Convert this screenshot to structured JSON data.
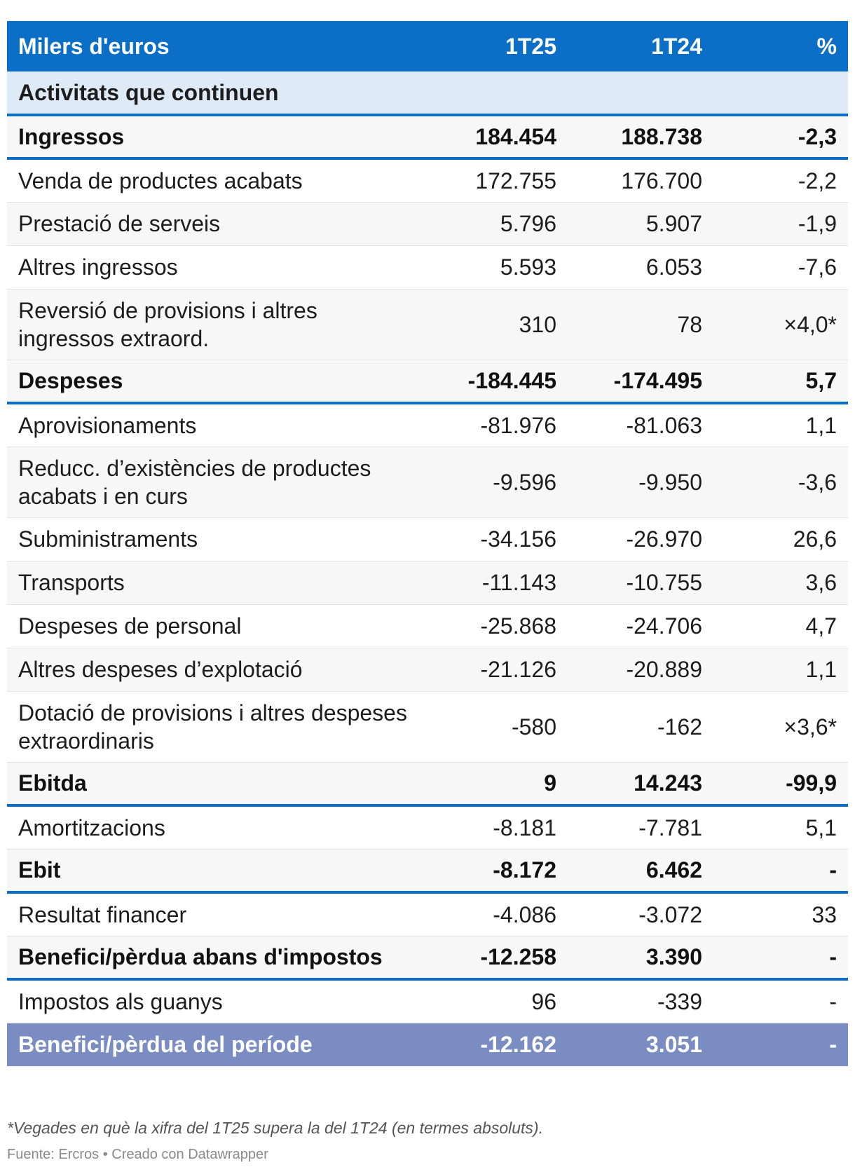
{
  "chart_data": {
    "type": "table",
    "columns": [
      "Milers d'euros",
      "1T25",
      "1T24",
      "%"
    ],
    "section": "Activitats que continuen",
    "rows": [
      {
        "label": "Ingressos",
        "t25": "184.454",
        "t24": "188.738",
        "pct": "-2,3",
        "style": "bold"
      },
      {
        "label": "Venda de productes acabats",
        "t25": "172.755",
        "t24": "176.700",
        "pct": "-2,2",
        "style": "normal"
      },
      {
        "label": "Prestació de serveis",
        "t25": "5.796",
        "t24": "5.907",
        "pct": "-1,9",
        "style": "normal"
      },
      {
        "label": "Altres ingressos",
        "t25": "5.593",
        "t24": "6.053",
        "pct": "-7,6",
        "style": "normal"
      },
      {
        "label": "Reversió de provisions i altres ingressos extraord.",
        "t25": "310",
        "t24": "78",
        "pct": "×4,0*",
        "style": "normal"
      },
      {
        "label": "Despeses",
        "t25": "-184.445",
        "t24": "-174.495",
        "pct": "5,7",
        "style": "bold"
      },
      {
        "label": "Aprovisionaments",
        "t25": "-81.976",
        "t24": "-81.063",
        "pct": "1,1",
        "style": "normal"
      },
      {
        "label": "Reducc. d’existències de productes acabats i en curs",
        "t25": "-9.596",
        "t24": "-9.950",
        "pct": "-3,6",
        "style": "normal"
      },
      {
        "label": "Subministraments",
        "t25": "-34.156",
        "t24": "-26.970",
        "pct": "26,6",
        "style": "normal"
      },
      {
        "label": "Transports",
        "t25": "-11.143",
        "t24": "-10.755",
        "pct": "3,6",
        "style": "normal"
      },
      {
        "label": "Despeses de personal",
        "t25": "-25.868",
        "t24": "-24.706",
        "pct": "4,7",
        "style": "normal"
      },
      {
        "label": "Altres despeses d’explotació",
        "t25": "-21.126",
        "t24": "-20.889",
        "pct": "1,1",
        "style": "normal"
      },
      {
        "label": "Dotació de provisions i altres despeses extraordinaris",
        "t25": "-580",
        "t24": "-162",
        "pct": "×3,6*",
        "style": "normal"
      },
      {
        "label": "Ebitda",
        "t25": "9",
        "t24": "14.243",
        "pct": "-99,9",
        "style": "bold"
      },
      {
        "label": "Amortitzacions",
        "t25": "-8.181",
        "t24": "-7.781",
        "pct": "5,1",
        "style": "normal"
      },
      {
        "label": "Ebit",
        "t25": "-8.172",
        "t24": "6.462",
        "pct": "-",
        "style": "bold"
      },
      {
        "label": "Resultat financer",
        "t25": "-4.086",
        "t24": "-3.072",
        "pct": "33",
        "style": "normal"
      },
      {
        "label": "Benefici/pèrdua abans d'impostos",
        "t25": "-12.258",
        "t24": "3.390",
        "pct": "-",
        "style": "bold"
      },
      {
        "label": "Impostos als guanys",
        "t25": "96",
        "t24": "-339",
        "pct": "-",
        "style": "normal"
      },
      {
        "label": "Benefici/pèrdua del període",
        "t25": "-12.162",
        "t24": "3.051",
        "pct": "-",
        "style": "final"
      }
    ],
    "footnote": "*Vegades en què la xifra del 1T25 supera la del 1T24 (en termes absoluts).",
    "source": "Fuente: Ercros • Creado con Datawrapper"
  },
  "colors": {
    "header_bg": "#0b6fc8",
    "section_bg": "#deebf7",
    "final_row_bg": "#7b8cc2",
    "stripe_bg": "#f7f7f7"
  }
}
